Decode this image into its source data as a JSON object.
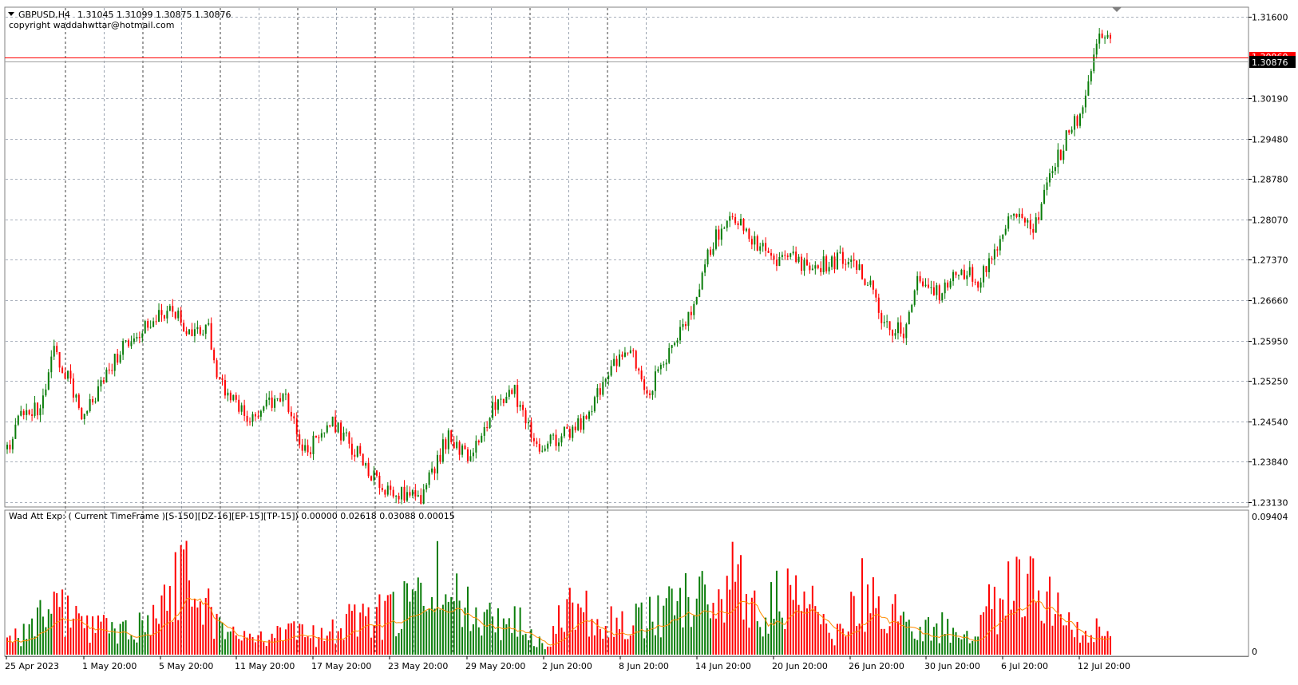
{
  "header": {
    "symbol": "GBPUSD,H4",
    "ohlc": "1.31045 1.31099 1.30875 1.30876",
    "copyright": "copyright waddahwttar@hotmail.com"
  },
  "indicator": {
    "label": "Wad Att Exp: ( Current TimeFrame )[S-150][DZ-16][EP-15][TP-15]) 0.00000 0.02618 0.03088 0.00015",
    "max_label": "0.09404",
    "min_label": "0"
  },
  "colors": {
    "bull": "#0a7d0a",
    "bear": "#ff0000",
    "signal": "#ff8c00",
    "bid_line": "#ff0000",
    "last_price_bg": "#000000"
  },
  "chart_data": [
    {
      "type": "candlestick",
      "symbol": "GBPUSD",
      "timeframe": "H4",
      "price_labels": [
        "1.31600",
        "1.30190",
        "1.29480",
        "1.28780",
        "1.28070",
        "1.27370",
        "1.26660",
        "1.25950",
        "1.25250",
        "1.24540",
        "1.23840",
        "1.23130"
      ],
      "price_ticks": [
        1.316,
        1.3019,
        1.2948,
        1.2878,
        1.2807,
        1.2737,
        1.2666,
        1.2595,
        1.2525,
        1.2454,
        1.2384,
        1.2313
      ],
      "ylim": [
        1.2306,
        1.3176
      ],
      "current_price_label": "1.30876",
      "current_price": 1.30876,
      "bid_label": "1.30960",
      "bid_price": 1.3096,
      "x_labels": [
        "25 Apr 2023",
        "1 May 20:00",
        "5 May 20:00",
        "11 May 20:00",
        "17 May 20:00",
        "23 May 20:00",
        "29 May 20:00",
        "2 Jun 20:00",
        "8 Jun 20:00",
        "14 Jun 20:00",
        "20 Jun 20:00",
        "26 Jun 20:00",
        "30 Jun 20:00",
        "6 Jul 20:00",
        "12 Jul 20:00"
      ],
      "bar_count": 300,
      "anchors": [
        [
          0,
          1.2405
        ],
        [
          5,
          1.2475
        ],
        [
          12,
          1.248
        ],
        [
          17,
          1.2575
        ],
        [
          22,
          1.253
        ],
        [
          28,
          1.246
        ],
        [
          35,
          1.253
        ],
        [
          42,
          1.258
        ],
        [
          50,
          1.2615
        ],
        [
          60,
          1.2655
        ],
        [
          67,
          1.26
        ],
        [
          73,
          1.2615
        ],
        [
          77,
          1.252
        ],
        [
          88,
          1.246
        ],
        [
          100,
          1.25
        ],
        [
          108,
          1.24
        ],
        [
          118,
          1.245
        ],
        [
          130,
          1.238
        ],
        [
          137,
          1.233
        ],
        [
          150,
          1.232
        ],
        [
          160,
          1.243
        ],
        [
          168,
          1.238
        ],
        [
          175,
          1.247
        ],
        [
          183,
          1.2515
        ],
        [
          192,
          1.241
        ],
        [
          200,
          1.2425
        ],
        [
          210,
          1.246
        ],
        [
          218,
          1.2545
        ],
        [
          227,
          1.2575
        ],
        [
          232,
          1.25
        ],
        [
          240,
          1.258
        ],
        [
          248,
          1.264
        ],
        [
          255,
          1.276
        ],
        [
          262,
          1.282
        ],
        [
          272,
          1.2765
        ],
        [
          278,
          1.273
        ],
        [
          285,
          1.274
        ],
        [
          290,
          1.272
        ],
        [
          297,
          1.273
        ],
        [
          305,
          1.274
        ],
        [
          312,
          1.27
        ],
        [
          318,
          1.262
        ],
        [
          325,
          1.261
        ],
        [
          330,
          1.27
        ],
        [
          338,
          1.268
        ],
        [
          345,
          1.272
        ],
        [
          352,
          1.27
        ],
        [
          358,
          1.274
        ],
        [
          365,
          1.282
        ],
        [
          372,
          1.278
        ],
        [
          378,
          1.288
        ],
        [
          385,
          1.296
        ],
        [
          390,
          1.3
        ],
        [
          395,
          1.312
        ],
        [
          400,
          1.3125
        ],
        [
          404,
          1.3088
        ]
      ],
      "candles_shown": 300
    },
    {
      "type": "histogram",
      "name": "Wad Att Exp",
      "ylim": [
        0,
        0.09404
      ],
      "segments": [
        {
          "start": 0,
          "end": 4,
          "dir": "bear"
        },
        {
          "start": 4,
          "end": 17,
          "dir": "bull"
        },
        {
          "start": 17,
          "end": 37,
          "dir": "bear"
        },
        {
          "start": 37,
          "end": 52,
          "dir": "bull"
        },
        {
          "start": 52,
          "end": 77,
          "dir": "bear"
        },
        {
          "start": 77,
          "end": 82,
          "dir": "bull"
        },
        {
          "start": 82,
          "end": 140,
          "dir": "bear"
        },
        {
          "start": 140,
          "end": 196,
          "dir": "bull"
        },
        {
          "start": 196,
          "end": 228,
          "dir": "bear"
        },
        {
          "start": 228,
          "end": 256,
          "dir": "bull"
        },
        {
          "start": 256,
          "end": 272,
          "dir": "bear"
        },
        {
          "start": 272,
          "end": 282,
          "dir": "bull"
        },
        {
          "start": 282,
          "end": 325,
          "dir": "bear"
        },
        {
          "start": 325,
          "end": 353,
          "dir": "bull"
        },
        {
          "start": 353,
          "end": 405,
          "dir": "bear"
        }
      ],
      "peaks": [
        [
          0,
          0.015
        ],
        [
          8,
          0.03
        ],
        [
          20,
          0.05
        ],
        [
          25,
          0.04
        ],
        [
          30,
          0.03
        ],
        [
          40,
          0.03
        ],
        [
          55,
          0.04
        ],
        [
          62,
          0.094
        ],
        [
          70,
          0.07
        ],
        [
          80,
          0.02
        ],
        [
          90,
          0.02
        ],
        [
          100,
          0.03
        ],
        [
          110,
          0.02
        ],
        [
          125,
          0.035
        ],
        [
          140,
          0.045
        ],
        [
          150,
          0.06
        ],
        [
          158,
          0.085
        ],
        [
          165,
          0.05
        ],
        [
          175,
          0.045
        ],
        [
          185,
          0.035
        ],
        [
          195,
          0.015
        ],
        [
          205,
          0.055
        ],
        [
          215,
          0.045
        ],
        [
          225,
          0.03
        ],
        [
          235,
          0.045
        ],
        [
          245,
          0.065
        ],
        [
          255,
          0.06
        ],
        [
          265,
          0.08
        ],
        [
          272,
          0.05
        ],
        [
          280,
          0.06
        ],
        [
          290,
          0.055
        ],
        [
          300,
          0.02
        ],
        [
          310,
          0.065
        ],
        [
          320,
          0.05
        ],
        [
          330,
          0.03
        ],
        [
          340,
          0.03
        ],
        [
          350,
          0.015
        ],
        [
          355,
          0.045
        ],
        [
          362,
          0.06
        ],
        [
          370,
          0.085
        ],
        [
          378,
          0.06
        ],
        [
          385,
          0.04
        ],
        [
          395,
          0.025
        ],
        [
          404,
          0.03
        ]
      ]
    }
  ]
}
